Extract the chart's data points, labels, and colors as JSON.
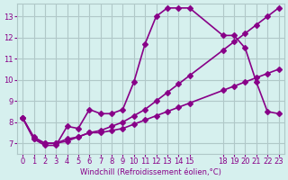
{
  "xlabel": "Windchill (Refroidissement éolien,°C)",
  "background_color": "#d6f0ee",
  "grid_color": "#b0c8c8",
  "line_color": "#880088",
  "marker": "D",
  "markersize": 3,
  "linewidth": 1.2,
  "series1_x": [
    0,
    1,
    2,
    3,
    4,
    5,
    6,
    7,
    8,
    9,
    10,
    11,
    12,
    13,
    14,
    15,
    18,
    19,
    20,
    21,
    22,
    23
  ],
  "series1_y": [
    8.2,
    7.2,
    6.9,
    6.9,
    7.8,
    7.7,
    8.6,
    8.4,
    8.4,
    8.6,
    9.9,
    11.7,
    13.0,
    13.4,
    13.4,
    13.4,
    12.1,
    12.1,
    11.5,
    9.9,
    8.5,
    8.4
  ],
  "series2_x": [
    0,
    1,
    2,
    3,
    4,
    5,
    6,
    7,
    8,
    9,
    10,
    11,
    12,
    13,
    14,
    15,
    18,
    19,
    20,
    21,
    22,
    23
  ],
  "series2_y": [
    8.2,
    7.2,
    7.0,
    7.0,
    7.2,
    7.3,
    7.5,
    7.5,
    7.6,
    7.7,
    7.9,
    8.1,
    8.3,
    8.5,
    8.7,
    8.9,
    9.5,
    9.7,
    9.9,
    10.1,
    10.3,
    10.5
  ],
  "series3_x": [
    0,
    1,
    2,
    3,
    4,
    5,
    6,
    7,
    8,
    9,
    10,
    11,
    12,
    13,
    14,
    15,
    18,
    19,
    20,
    21,
    22,
    23
  ],
  "series3_y": [
    8.2,
    7.3,
    7.0,
    7.0,
    7.1,
    7.3,
    7.5,
    7.6,
    7.8,
    8.0,
    8.3,
    8.6,
    9.0,
    9.4,
    9.8,
    10.2,
    11.4,
    11.8,
    12.2,
    12.6,
    13.0,
    13.4
  ],
  "xlim": [
    -0.5,
    23.5
  ],
  "ylim": [
    6.5,
    13.6
  ],
  "yticks": [
    7,
    8,
    9,
    10,
    11,
    12,
    13
  ],
  "xticks": [
    0,
    1,
    2,
    3,
    4,
    5,
    6,
    7,
    8,
    9,
    10,
    11,
    12,
    13,
    14,
    15,
    18,
    19,
    20,
    21,
    22,
    23
  ]
}
